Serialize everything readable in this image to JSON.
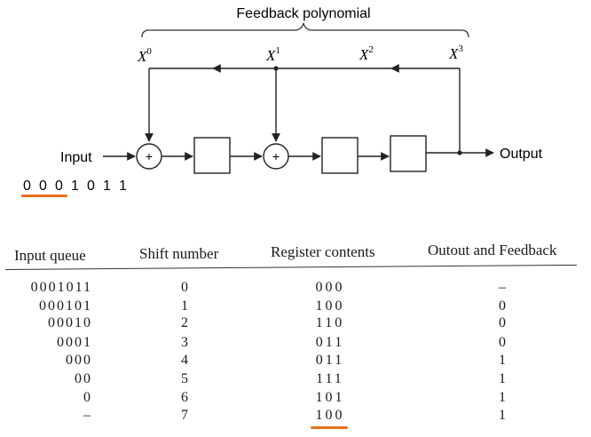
{
  "diagram": {
    "title": "Feedback polynomial",
    "taps": [
      "X",
      "X",
      "X",
      "X"
    ],
    "tap_exponents": [
      "0",
      "1",
      "2",
      "3"
    ],
    "input_label": "Input",
    "output_label": "Output",
    "xor_symbol": "+",
    "input_sequence": [
      "0",
      "0",
      "0",
      "1",
      "0",
      "1",
      "1"
    ],
    "highlight_color": "#e8701e"
  },
  "table": {
    "headers": [
      "Input queue",
      "Shift number",
      "Register contents",
      "Outout and Feedback"
    ],
    "rows": [
      {
        "queue": "0001011",
        "shift": "0",
        "register": "000",
        "out": "–"
      },
      {
        "queue": "000101",
        "shift": "1",
        "register": "100",
        "out": "0"
      },
      {
        "queue": "00010",
        "shift": "2",
        "register": "110",
        "out": "0"
      },
      {
        "queue": "0001",
        "shift": "3",
        "register": "011",
        "out": "0"
      },
      {
        "queue": "000",
        "shift": "4",
        "register": "011",
        "out": "1"
      },
      {
        "queue": "00",
        "shift": "5",
        "register": "111",
        "out": "1"
      },
      {
        "queue": "0",
        "shift": "6",
        "register": "101",
        "out": "1"
      },
      {
        "queue": "–",
        "shift": "7",
        "register": "100",
        "out": "1"
      }
    ]
  }
}
